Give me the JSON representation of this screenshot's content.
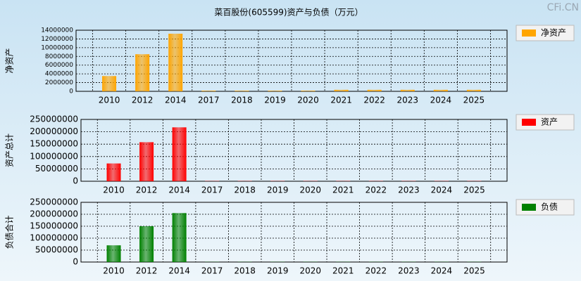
{
  "watermark": "CFi.CN",
  "chart_data": [
    {
      "type": "bar",
      "title": "菜百股份(605599)资产与负债（万元）",
      "ylabel": "净资产",
      "categories": [
        "2010",
        "2012",
        "2014",
        "2017",
        "2018",
        "2019",
        "2020",
        "2021",
        "2022",
        "2023",
        "2024",
        "2025"
      ],
      "series": [
        {
          "name": "净资产",
          "color": "#ffa500",
          "values": [
            3500000,
            8500000,
            13200000,
            150000,
            150000,
            150000,
            150000,
            350000,
            350000,
            350000,
            350000,
            350000
          ]
        }
      ],
      "ylim": [
        0,
        14000000
      ],
      "yticks": [
        0,
        2000000,
        4000000,
        6000000,
        8000000,
        10000000,
        12000000,
        14000000
      ],
      "grid": true
    },
    {
      "type": "bar",
      "ylabel": "资产总计",
      "categories": [
        "2010",
        "2012",
        "2014",
        "2017",
        "2018",
        "2019",
        "2020",
        "2021",
        "2022",
        "2023",
        "2024",
        "2025"
      ],
      "series": [
        {
          "name": "资产",
          "color": "#ff0000",
          "values": [
            72000000,
            158000000,
            218000000,
            1000000,
            1000000,
            1000000,
            1000000,
            1000000,
            1000000,
            1000000,
            1000000,
            1000000
          ]
        }
      ],
      "ylim": [
        0,
        250000000
      ],
      "yticks": [
        0,
        50000000,
        100000000,
        150000000,
        200000000,
        250000000
      ],
      "grid": true
    },
    {
      "type": "bar",
      "ylabel": "负债合计",
      "categories": [
        "2010",
        "2012",
        "2014",
        "2017",
        "2018",
        "2019",
        "2020",
        "2021",
        "2022",
        "2023",
        "2024",
        "2025"
      ],
      "series": [
        {
          "name": "负债",
          "color": "#008000",
          "values": [
            70000000,
            150000000,
            205000000,
            800000,
            800000,
            800000,
            800000,
            800000,
            800000,
            800000,
            800000,
            800000
          ]
        }
      ],
      "ylim": [
        0,
        250000000
      ],
      "yticks": [
        0,
        50000000,
        100000000,
        150000000,
        200000000,
        250000000
      ],
      "grid": true
    }
  ]
}
